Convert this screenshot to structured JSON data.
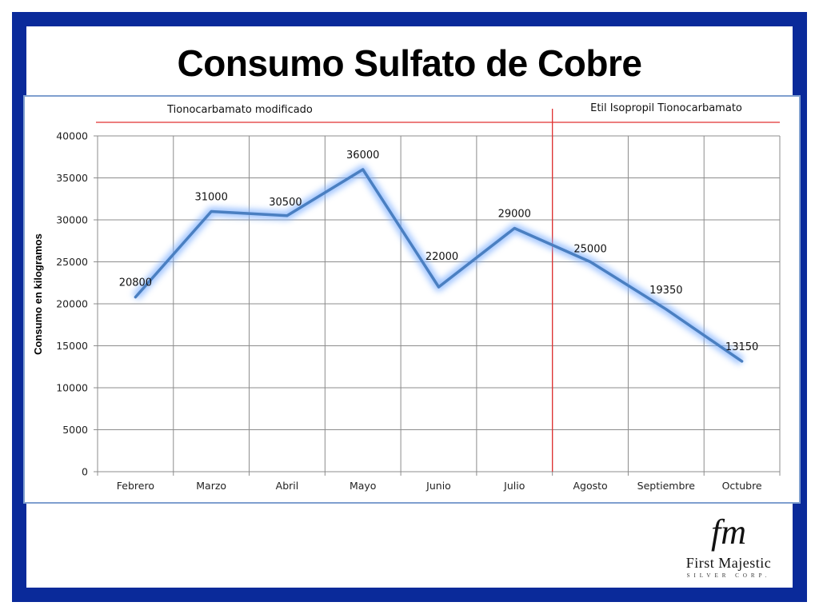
{
  "slide": {
    "title": "Consumo Sulfato de Cobre"
  },
  "logo": {
    "monogram": "fm",
    "name": "First Majestic",
    "subtitle": "SILVER CORP."
  },
  "colors": {
    "frame": "#0a2a9a",
    "line": "#4a7fc1",
    "glow": "#7fb0ff",
    "divider": "#e03030"
  },
  "chart_data": {
    "type": "line",
    "categories": [
      "Febrero",
      "Marzo",
      "Abril",
      "Mayo",
      "Junio",
      "Julio",
      "Agosto",
      "Septiembre",
      "Octubre"
    ],
    "values": [
      20800,
      31000,
      30500,
      36000,
      22000,
      29000,
      25000,
      19350,
      13150
    ],
    "data_labels": [
      "20800",
      "31000",
      "30500",
      "36000",
      "22000",
      "29000",
      "25000",
      "19350",
      "13150"
    ],
    "ylabel": "Consumo en kilogramos",
    "ylim": [
      0,
      40000
    ],
    "yticks": [
      "0",
      "5000",
      "10000",
      "15000",
      "20000",
      "25000",
      "30000",
      "35000",
      "40000"
    ],
    "grid": true,
    "legend": "none",
    "regions": [
      {
        "label": "Tionocarbamato modificado",
        "from": "Febrero",
        "to": "Julio"
      },
      {
        "label": "Etil Isopropil Tionocarbamato",
        "from": "Agosto",
        "to": "Octubre"
      }
    ]
  }
}
